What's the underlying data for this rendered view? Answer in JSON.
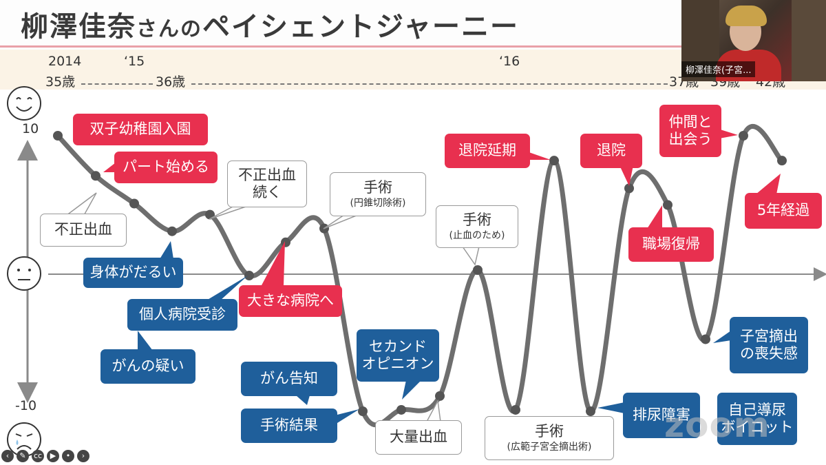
{
  "title": {
    "name": "柳澤佳奈",
    "honorific": "さんの",
    "rest": "ペイシェントジャーニー"
  },
  "timeline": {
    "years": [
      "2014",
      "‘15",
      "‘16"
    ],
    "ages": [
      "35歳",
      "36歳",
      "37歳",
      "39歳",
      "42歳"
    ]
  },
  "video": {
    "participant": "柳澤佳奈(子宮..."
  },
  "watermark": "zoom",
  "colors": {
    "positive": "#e8304f",
    "negative": "#1f5f9b",
    "curve": "#6e6e6e"
  },
  "chart_data": {
    "type": "line",
    "title": "柳澤佳奈さんのペイシェントジャーニー",
    "ylim": [
      -10,
      10
    ],
    "y_ticks": [
      "10",
      "-10"
    ],
    "x_markers": [
      "2014",
      "‘15",
      "‘16"
    ],
    "series": [
      {
        "points": [
          {
            "y": 10.0
          },
          {
            "y": 7.1
          },
          {
            "y": 5.1
          },
          {
            "y": 3.1
          },
          {
            "y": 4.3
          },
          {
            "y": -0.1
          },
          {
            "y": 2.3
          },
          {
            "y": 3.3
          },
          {
            "y": -9.9
          },
          {
            "y": -9.8
          },
          {
            "y": -8.8
          },
          {
            "y": 0.3
          },
          {
            "y": -9.8
          },
          {
            "y": 8.2
          },
          {
            "y": -9.9
          },
          {
            "y": 6.2
          },
          {
            "y": 5.0
          },
          {
            "y": -4.7
          },
          {
            "y": 10.0
          },
          {
            "y": 8.2
          }
        ]
      }
    ],
    "events": {
      "positive": [
        {
          "label": "双子幼稚園入園"
        },
        {
          "label": "パート始める"
        },
        {
          "label": "大きな病院へ"
        },
        {
          "label": "退院延期"
        },
        {
          "label": "退院"
        },
        {
          "label": "仲間と\n出会う"
        },
        {
          "label": "5年経過"
        },
        {
          "label": "職場復帰"
        }
      ],
      "negative": [
        {
          "label": "身体がだるい"
        },
        {
          "label": "個人病院受診"
        },
        {
          "label": "がんの疑い"
        },
        {
          "label": "がん告知"
        },
        {
          "label": "手術結果"
        },
        {
          "label": "セカンド\nオピニオン"
        },
        {
          "label": "排尿障害"
        },
        {
          "label": "子宮摘出\nの喪失感"
        },
        {
          "label": "自己導尿\nボイコット"
        }
      ],
      "neutral": [
        {
          "label": "不正出血"
        },
        {
          "label": "不正出血\n続く"
        },
        {
          "label": "手術",
          "sub": "(円錐切除術)"
        },
        {
          "label": "手術",
          "sub": "(止血のため)"
        },
        {
          "label": "大量出血"
        },
        {
          "label": "手術",
          "sub": "(広範子宮全摘出術)"
        }
      ]
    }
  }
}
